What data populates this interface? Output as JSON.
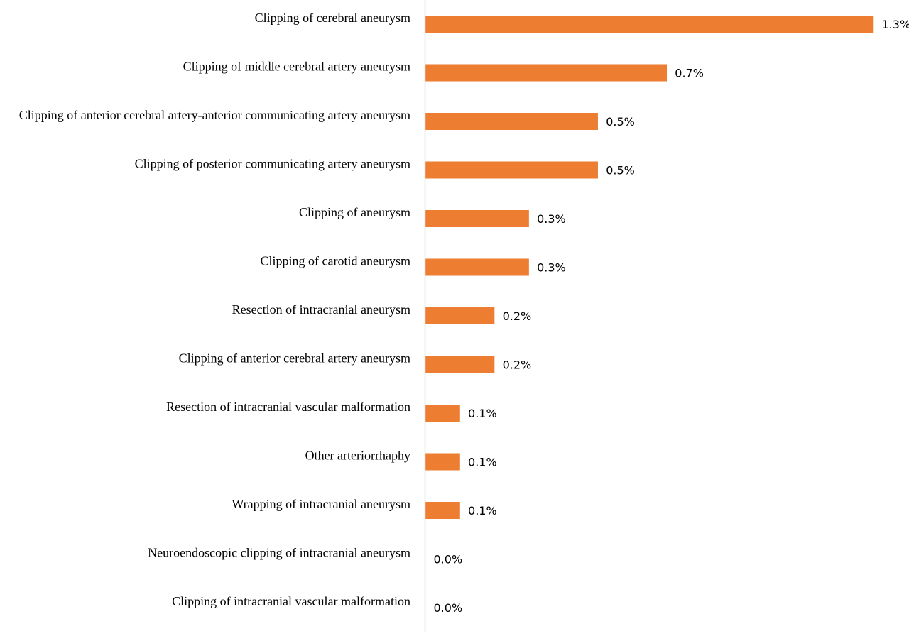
{
  "colors": {
    "bar": "#ED7D31",
    "axis": "#D9D9D9",
    "text": "#000000",
    "background": "#FFFFFF"
  },
  "chart_data": {
    "type": "bar",
    "orientation": "horizontal",
    "title": "",
    "xlabel": "",
    "ylabel": "",
    "xlim": [
      0,
      1.3
    ],
    "grid": false,
    "legend": "none",
    "categories": [
      "Clipping of cerebral aneurysm",
      "Clipping of middle cerebral artery aneurysm",
      "Clipping of anterior cerebral artery-anterior communicating artery aneurysm",
      "Clipping of posterior communicating artery aneurysm",
      "Clipping of aneurysm",
      "Clipping of carotid aneurysm",
      "Resection of intracranial aneurysm",
      "Clipping of anterior cerebral artery aneurysm",
      "Resection of intracranial vascular malformation",
      "Other arteriorrhaphy",
      "Wrapping of intracranial aneurysm",
      "Neuroendoscopic clipping of intracranial aneurysm",
      "Clipping of intracranial vascular malformation"
    ],
    "values": [
      1.3,
      0.7,
      0.5,
      0.5,
      0.3,
      0.3,
      0.2,
      0.2,
      0.1,
      0.1,
      0.1,
      0.0,
      0.0
    ],
    "data_labels": [
      "1.3%",
      "0.7%",
      "0.5%",
      "0.5%",
      "0.3%",
      "0.3%",
      "0.2%",
      "0.2%",
      "0.1%",
      "0.1%",
      "0.1%",
      "0.0%",
      "0.0%"
    ]
  }
}
